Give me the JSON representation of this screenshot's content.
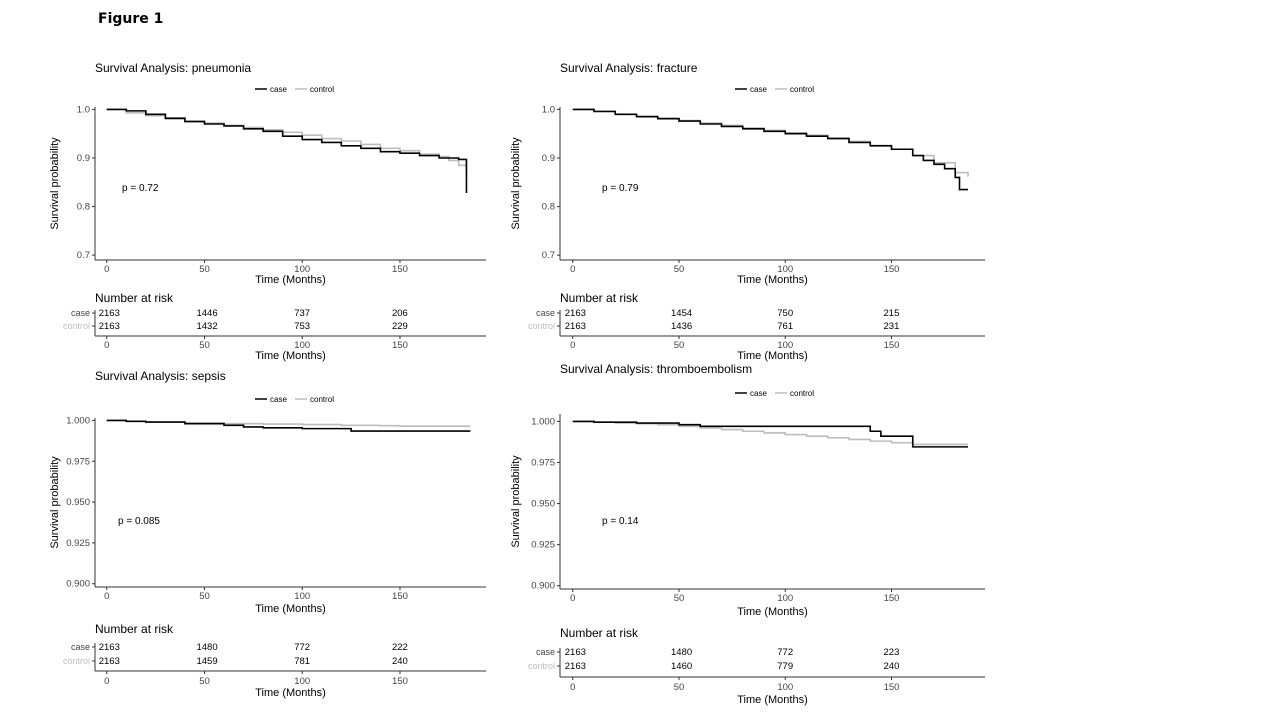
{
  "figure_label": "Figure 1",
  "colors": {
    "case": "#000000",
    "control": "#bdbdbd",
    "axis": "#333333",
    "control_label": "#bdbdbd"
  },
  "chart_data": [
    {
      "type": "line",
      "title": "Survival Analysis: pneumonia",
      "xlabel": "Time (Months)",
      "ylabel": "Survival probability",
      "xlim": [
        -6,
        194
      ],
      "ylim": [
        0.69,
        1.005
      ],
      "x_ticks": [
        0,
        50,
        100,
        150
      ],
      "y_ticks": [
        0.7,
        0.8,
        0.9,
        1.0
      ],
      "y_tick_labels": [
        "0.7",
        "0.8",
        "0.9",
        "1.0"
      ],
      "legend": {
        "position": "top",
        "entries": [
          "case",
          "control"
        ]
      },
      "pvalue": "p = 0.72",
      "grid": false,
      "series": [
        {
          "name": "case",
          "x": [
            0,
            10,
            20,
            30,
            40,
            50,
            60,
            70,
            80,
            90,
            100,
            110,
            120,
            130,
            140,
            150,
            160,
            170,
            180,
            184,
            184
          ],
          "y": [
            1.0,
            0.997,
            0.99,
            0.982,
            0.975,
            0.97,
            0.966,
            0.96,
            0.955,
            0.945,
            0.938,
            0.932,
            0.925,
            0.92,
            0.913,
            0.91,
            0.905,
            0.9,
            0.897,
            0.897,
            0.828
          ]
        },
        {
          "name": "control",
          "x": [
            0,
            10,
            20,
            30,
            40,
            50,
            60,
            70,
            80,
            90,
            100,
            110,
            120,
            130,
            140,
            150,
            160,
            170,
            175,
            180,
            184
          ],
          "y": [
            1.0,
            0.993,
            0.987,
            0.98,
            0.976,
            0.972,
            0.967,
            0.963,
            0.958,
            0.953,
            0.947,
            0.94,
            0.935,
            0.928,
            0.92,
            0.915,
            0.908,
            0.903,
            0.895,
            0.885,
            0.873
          ]
        }
      ],
      "risk_table": {
        "title": "Number at risk",
        "rows": [
          {
            "label": "case",
            "values": [
              "2163",
              "1446",
              "737",
              "206"
            ]
          },
          {
            "label": "control",
            "values": [
              "2163",
              "1432",
              "753",
              "229"
            ]
          }
        ],
        "x_ticks": [
          0,
          50,
          100,
          150
        ],
        "xlabel": "Time (Months)"
      }
    },
    {
      "type": "line",
      "title": "Survival Analysis: fracture",
      "xlabel": "Time (Months)",
      "ylabel": "Survival probability",
      "xlim": [
        -6,
        194
      ],
      "ylim": [
        0.69,
        1.005
      ],
      "x_ticks": [
        0,
        50,
        100,
        150
      ],
      "y_ticks": [
        0.7,
        0.8,
        0.9,
        1.0
      ],
      "y_tick_labels": [
        "0.7",
        "0.8",
        "0.9",
        "1.0"
      ],
      "legend": {
        "position": "top",
        "entries": [
          "case",
          "control"
        ]
      },
      "pvalue": "p = 0.79",
      "grid": false,
      "series": [
        {
          "name": "case",
          "x": [
            0,
            10,
            20,
            30,
            40,
            50,
            60,
            70,
            80,
            90,
            100,
            110,
            120,
            130,
            140,
            150,
            160,
            165,
            170,
            175,
            180,
            182,
            186
          ],
          "y": [
            1.0,
            0.996,
            0.99,
            0.985,
            0.981,
            0.976,
            0.97,
            0.965,
            0.96,
            0.955,
            0.95,
            0.945,
            0.94,
            0.932,
            0.925,
            0.918,
            0.905,
            0.895,
            0.887,
            0.878,
            0.86,
            0.835,
            0.835
          ]
        },
        {
          "name": "control",
          "x": [
            0,
            10,
            20,
            30,
            40,
            50,
            60,
            70,
            80,
            90,
            100,
            110,
            120,
            130,
            140,
            150,
            160,
            170,
            180,
            186
          ],
          "y": [
            1.0,
            0.995,
            0.99,
            0.986,
            0.982,
            0.977,
            0.972,
            0.967,
            0.962,
            0.957,
            0.952,
            0.947,
            0.941,
            0.934,
            0.926,
            0.918,
            0.905,
            0.89,
            0.87,
            0.862
          ]
        }
      ],
      "risk_table": {
        "title": "Number at risk",
        "rows": [
          {
            "label": "case",
            "values": [
              "2163",
              "1454",
              "750",
              "215"
            ]
          },
          {
            "label": "control",
            "values": [
              "2163",
              "1436",
              "761",
              "231"
            ]
          }
        ],
        "x_ticks": [
          0,
          50,
          100,
          150
        ],
        "xlabel": "Time (Months)"
      }
    },
    {
      "type": "line",
      "title": "Survival Analysis: sepsis",
      "xlabel": "Time (Months)",
      "ylabel": "Survival probability",
      "xlim": [
        -6,
        194
      ],
      "ylim": [
        0.898,
        1.0015
      ],
      "x_ticks": [
        0,
        50,
        100,
        150
      ],
      "y_ticks": [
        0.9,
        0.925,
        0.95,
        0.975,
        1.0
      ],
      "y_tick_labels": [
        "0.900",
        "0.925",
        "0.950",
        "0.975",
        "1.000"
      ],
      "legend": {
        "position": "top",
        "entries": [
          "case",
          "control"
        ]
      },
      "pvalue": "p = 0.085",
      "grid": false,
      "series": [
        {
          "name": "case",
          "x": [
            0,
            10,
            20,
            40,
            60,
            70,
            80,
            100,
            120,
            125,
            150,
            186
          ],
          "y": [
            1.0,
            0.9995,
            0.999,
            0.998,
            0.997,
            0.996,
            0.9955,
            0.995,
            0.995,
            0.9935,
            0.9935,
            0.9935
          ]
        },
        {
          "name": "control",
          "x": [
            0,
            10,
            20,
            40,
            60,
            80,
            100,
            120,
            140,
            150,
            186
          ],
          "y": [
            1.0,
            0.9995,
            0.999,
            0.9985,
            0.998,
            0.9978,
            0.9975,
            0.997,
            0.9968,
            0.9965,
            0.9965
          ]
        }
      ],
      "risk_table": {
        "title": "Number at risk",
        "rows": [
          {
            "label": "case",
            "values": [
              "2163",
              "1480",
              "772",
              "222"
            ]
          },
          {
            "label": "control",
            "values": [
              "2163",
              "1459",
              "781",
              "240"
            ]
          }
        ],
        "x_ticks": [
          0,
          50,
          100,
          150
        ],
        "xlabel": "Time (Months)"
      }
    },
    {
      "type": "line",
      "title": "Survival Analysis: thromboembolism",
      "xlabel": "Time (Months)",
      "ylabel": "Survival probability",
      "xlim": [
        -6,
        194
      ],
      "ylim": [
        0.898,
        1.0045
      ],
      "x_ticks": [
        0,
        50,
        100,
        150
      ],
      "y_ticks": [
        0.9,
        0.925,
        0.95,
        0.975,
        1.0
      ],
      "y_tick_labels": [
        "0.900",
        "0.925",
        "0.950",
        "0.975",
        "1.000"
      ],
      "legend": {
        "position": "top",
        "entries": [
          "case",
          "control"
        ]
      },
      "pvalue": "p = 0.14",
      "grid": false,
      "series": [
        {
          "name": "case",
          "x": [
            0,
            10,
            30,
            50,
            60,
            80,
            100,
            120,
            130,
            140,
            145,
            150,
            160,
            186
          ],
          "y": [
            1.0,
            0.9995,
            0.999,
            0.998,
            0.997,
            0.997,
            0.997,
            0.997,
            0.997,
            0.994,
            0.991,
            0.991,
            0.9845,
            0.9845
          ]
        },
        {
          "name": "control",
          "x": [
            0,
            10,
            20,
            30,
            40,
            50,
            60,
            70,
            80,
            90,
            100,
            110,
            120,
            130,
            140,
            150,
            160,
            170,
            186
          ],
          "y": [
            1.0,
            0.9995,
            0.999,
            0.9985,
            0.998,
            0.997,
            0.996,
            0.995,
            0.994,
            0.993,
            0.992,
            0.991,
            0.99,
            0.989,
            0.988,
            0.987,
            0.986,
            0.986,
            0.986
          ]
        }
      ],
      "risk_table": {
        "title": "Number at risk",
        "rows": [
          {
            "label": "case",
            "values": [
              "2163",
              "1480",
              "772",
              "223"
            ]
          },
          {
            "label": "control",
            "values": [
              "2163",
              "1460",
              "779",
              "240"
            ]
          }
        ],
        "x_ticks": [
          0,
          50,
          100,
          150
        ],
        "xlabel": "Time (Months)"
      }
    }
  ]
}
